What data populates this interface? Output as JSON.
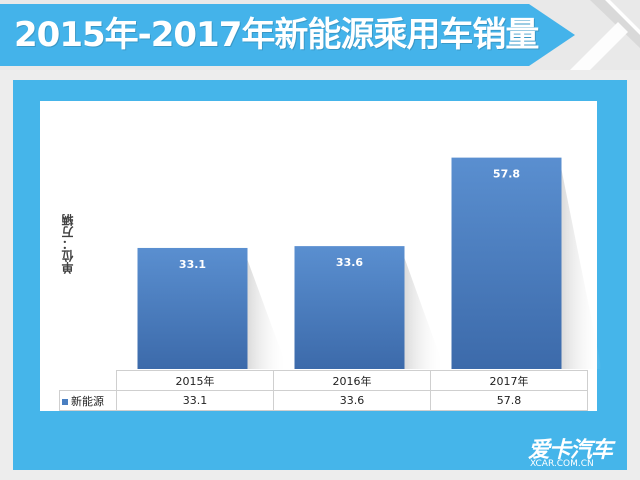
{
  "header": {
    "title": "2015年-2017年新能源乘用车销量"
  },
  "colors": {
    "accent": "#44b3ea",
    "bar": "#4a7fc1",
    "bar_dark": "#3b6aa9"
  },
  "logo": {
    "name": "爱卡汽车",
    "url": "XCAR.COM.CN"
  },
  "chart_data": {
    "type": "bar",
    "title": "2015年-2017年新能源乘用车销量",
    "categories": [
      "2015年",
      "2016年",
      "2017年"
    ],
    "series": [
      {
        "name": "新能源",
        "values": [
          33.1,
          33.6,
          57.8
        ],
        "labels": [
          "33.1",
          "33.6",
          "57.8"
        ]
      }
    ],
    "ylabel": "单位：万辆",
    "xlabel": "",
    "ylim": [
      0,
      70
    ],
    "grid": false,
    "legend": "data-table"
  }
}
